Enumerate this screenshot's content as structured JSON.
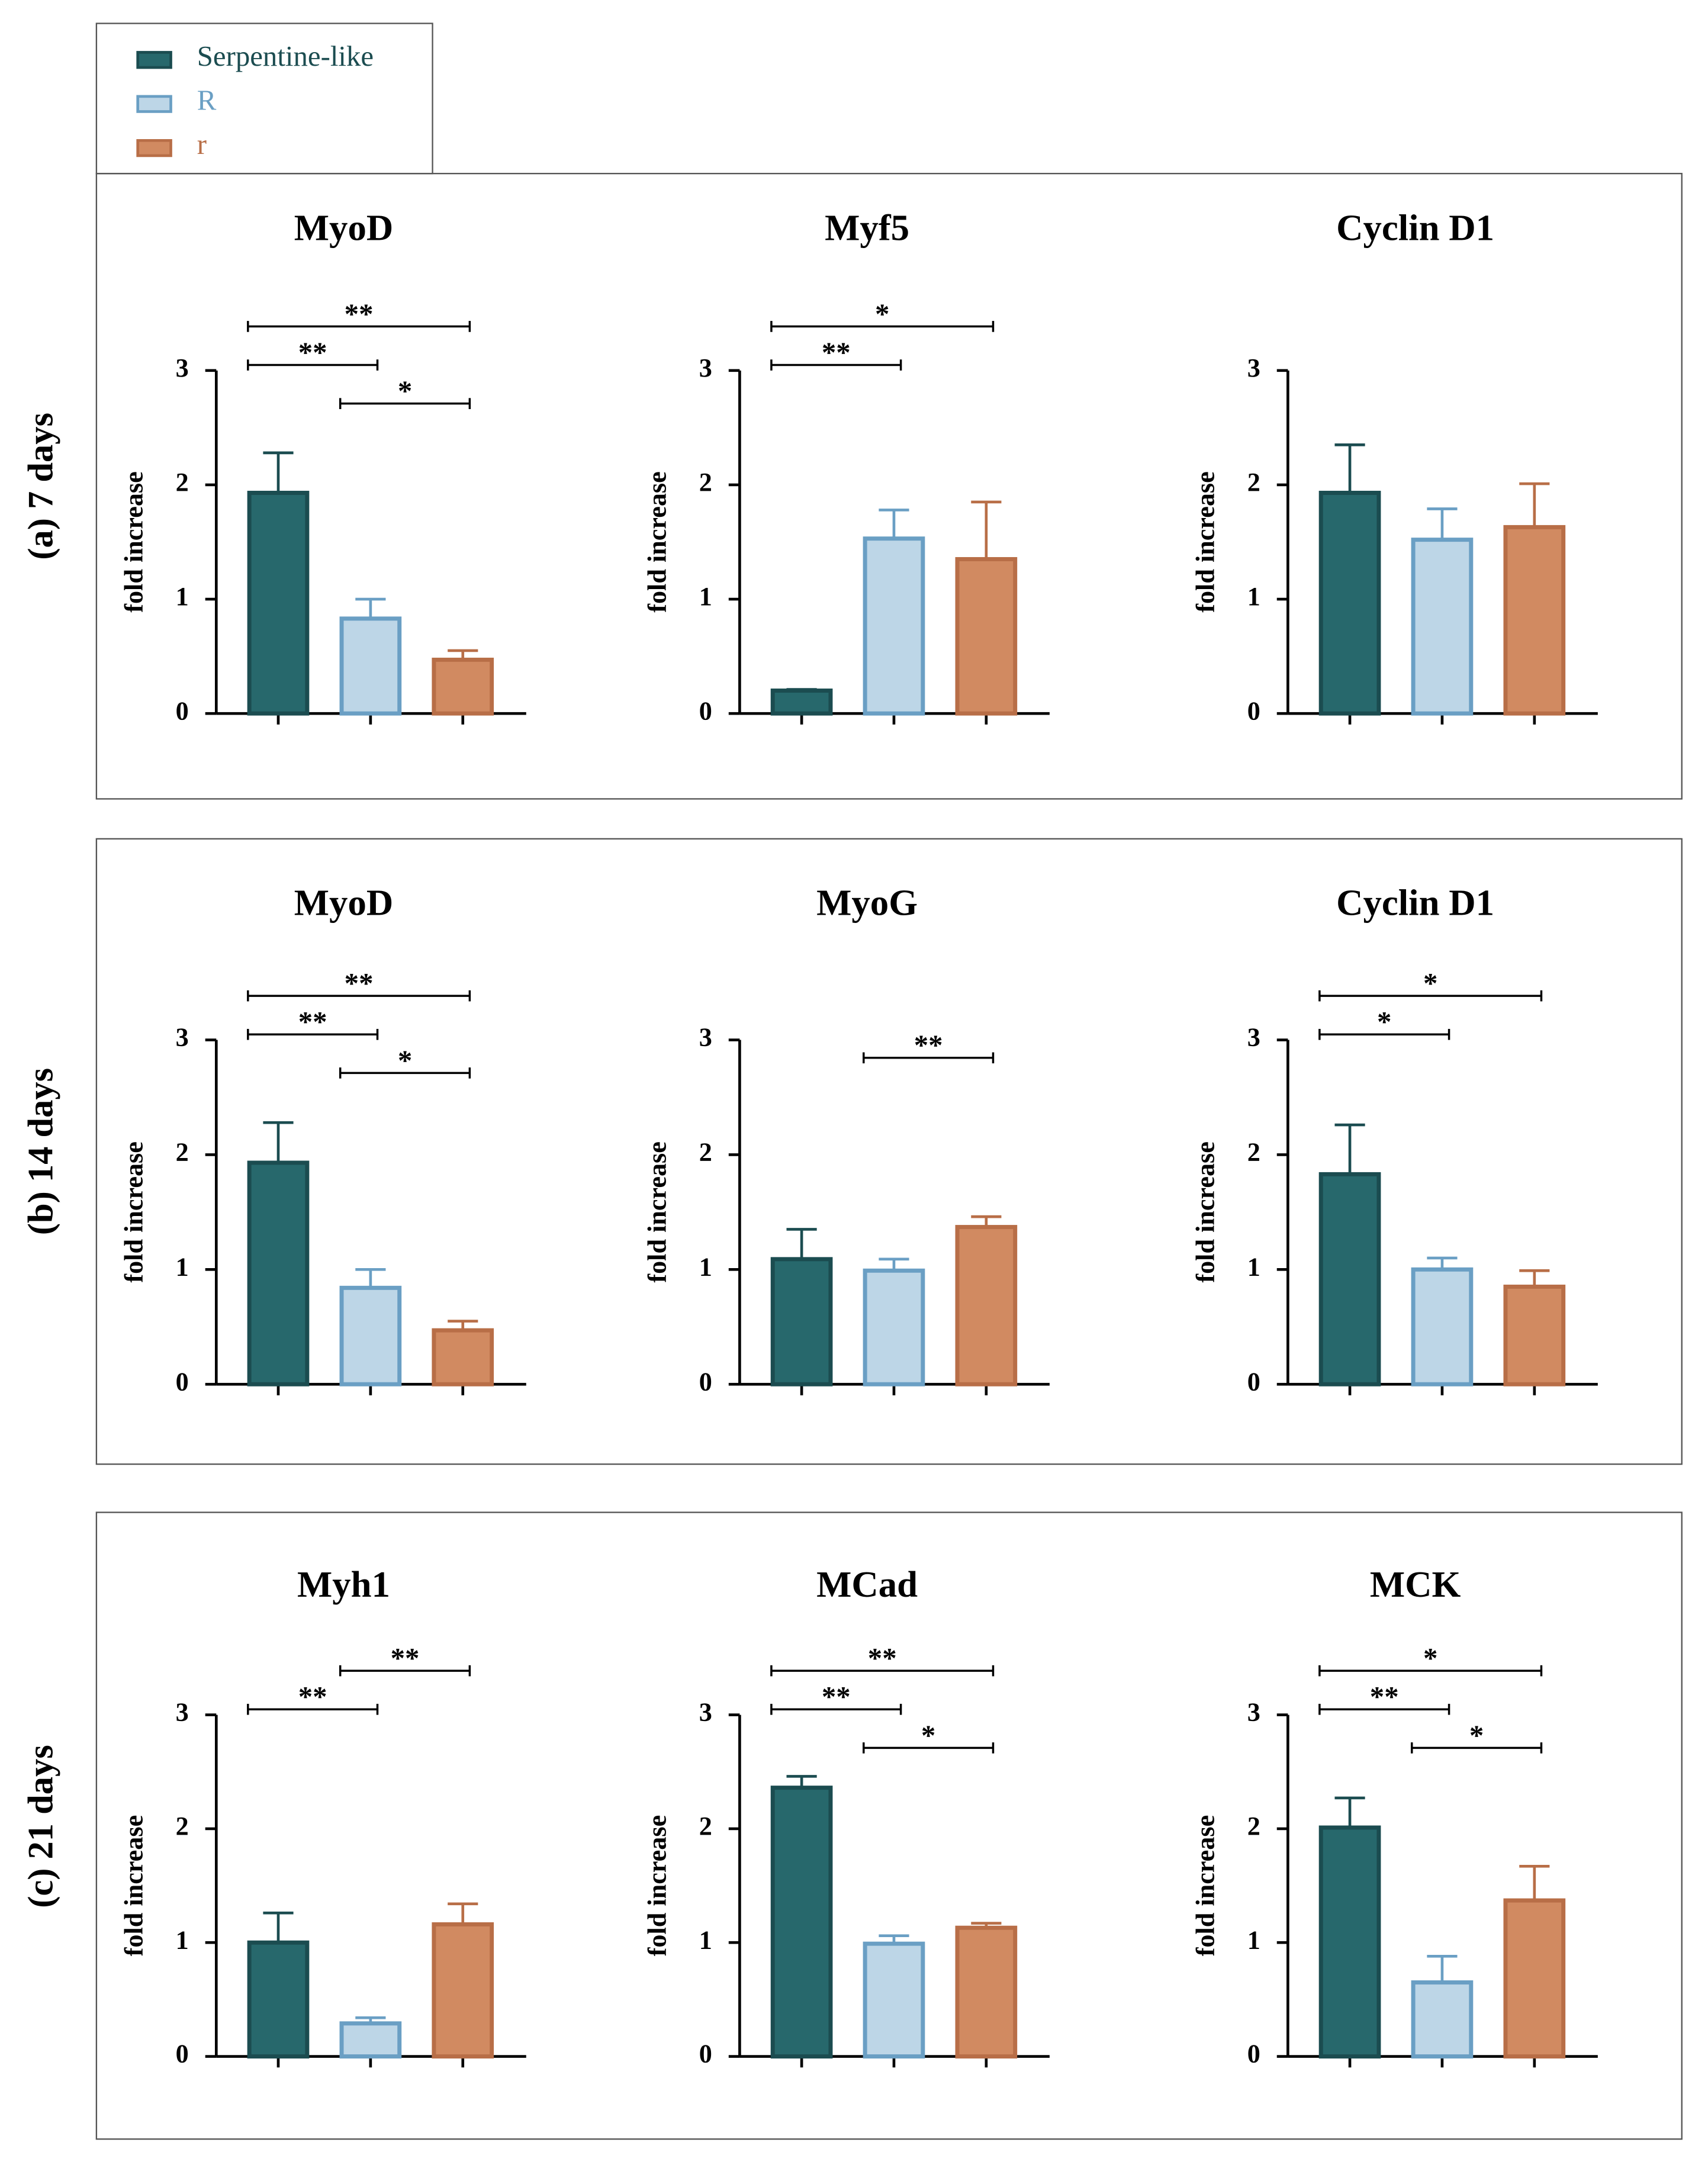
{
  "legend": [
    {
      "name": "Serpentine-like",
      "color": "#27686c",
      "edge": "#1b4c50"
    },
    {
      "name": "R",
      "color": "#bdd6e7",
      "edge": "#6a9fc4"
    },
    {
      "name": "r",
      "color": "#d18a61",
      "edge": "#b86e47"
    }
  ],
  "row_labels": [
    "(a) 7 days",
    "(b) 14 days",
    "(c) 21 days"
  ],
  "chart_data": [
    {
      "type": "bar",
      "title": "MyoD",
      "ylabel": "fold increase",
      "categories": [
        null,
        null,
        null
      ],
      "values": [
        1.93,
        0.83,
        0.47
      ],
      "errors": [
        0.35,
        0.17,
        0.08
      ],
      "ylim": [
        0,
        3
      ],
      "yticks": [
        0,
        1,
        2,
        3
      ],
      "significance": [
        {
          "from": 0,
          "to": 2,
          "label": "**"
        },
        {
          "from": 0,
          "to": 1,
          "label": "**"
        },
        {
          "from": 1,
          "to": 2,
          "label": "*"
        }
      ]
    },
    {
      "type": "bar",
      "title": "Myf5",
      "ylabel": "fold increase",
      "categories": [
        null,
        null,
        null
      ],
      "values": [
        0.2,
        1.53,
        1.35
      ],
      "errors": [
        0.01,
        0.25,
        0.5
      ],
      "ylim": [
        0,
        3
      ],
      "yticks": [
        0,
        1,
        2,
        3
      ],
      "significance": [
        {
          "from": 0,
          "to": 2,
          "label": "*"
        },
        {
          "from": 0,
          "to": 1,
          "label": "**"
        }
      ]
    },
    {
      "type": "bar",
      "title": "Cyclin D1",
      "ylabel": "fold increase",
      "categories": [
        null,
        null,
        null
      ],
      "values": [
        1.93,
        1.52,
        1.63
      ],
      "errors": [
        0.42,
        0.27,
        0.38
      ],
      "ylim": [
        0,
        3
      ],
      "yticks": [
        0,
        1,
        2,
        3
      ],
      "significance": []
    },
    {
      "type": "bar",
      "title": "MyoD",
      "ylabel": "fold increase",
      "categories": [
        null,
        null,
        null
      ],
      "values": [
        1.93,
        0.84,
        0.47
      ],
      "errors": [
        0.35,
        0.16,
        0.08
      ],
      "ylim": [
        0,
        3
      ],
      "yticks": [
        0,
        1,
        2,
        3
      ],
      "significance": [
        {
          "from": 0,
          "to": 2,
          "label": "**"
        },
        {
          "from": 0,
          "to": 1,
          "label": "**"
        },
        {
          "from": 1,
          "to": 2,
          "label": "*"
        }
      ]
    },
    {
      "type": "bar",
      "title": "MyoG",
      "ylabel": "fold increase",
      "categories": [
        null,
        null,
        null
      ],
      "values": [
        1.09,
        0.99,
        1.37
      ],
      "errors": [
        0.26,
        0.1,
        0.09
      ],
      "ylim": [
        0,
        3
      ],
      "yticks": [
        0,
        1,
        2,
        3
      ],
      "significance": [
        {
          "from": 1,
          "to": 2,
          "label": "**"
        }
      ]
    },
    {
      "type": "bar",
      "title": "Cyclin D1",
      "ylabel": "fold increase",
      "categories": [
        null,
        null,
        null
      ],
      "values": [
        1.83,
        1.0,
        0.85
      ],
      "errors": [
        0.43,
        0.1,
        0.14
      ],
      "ylim": [
        0,
        3
      ],
      "yticks": [
        0,
        1,
        2,
        3
      ],
      "significance": [
        {
          "from": 0,
          "to": 2,
          "label": "*"
        },
        {
          "from": 0,
          "to": 1,
          "label": "*"
        }
      ]
    },
    {
      "type": "bar",
      "title": "Myh1",
      "ylabel": "fold increase",
      "categories": [
        null,
        null,
        null
      ],
      "values": [
        1.0,
        0.29,
        1.16
      ],
      "errors": [
        0.26,
        0.05,
        0.18
      ],
      "ylim": [
        0,
        3
      ],
      "yticks": [
        0,
        1,
        2,
        3
      ],
      "significance": [
        {
          "from": 1,
          "to": 2,
          "label": "**"
        },
        {
          "from": 0,
          "to": 1,
          "label": "**"
        }
      ]
    },
    {
      "type": "bar",
      "title": "MCad",
      "ylabel": "fold increase",
      "categories": [
        null,
        null,
        null
      ],
      "values": [
        2.36,
        0.99,
        1.13
      ],
      "errors": [
        0.1,
        0.07,
        0.04
      ],
      "ylim": [
        0,
        3
      ],
      "yticks": [
        0,
        1,
        2,
        3
      ],
      "significance": [
        {
          "from": 0,
          "to": 2,
          "label": "**"
        },
        {
          "from": 0,
          "to": 1,
          "label": "**"
        },
        {
          "from": 1,
          "to": 2,
          "label": "*"
        }
      ]
    },
    {
      "type": "bar",
      "title": "MCK",
      "ylabel": "fold increase",
      "categories": [
        null,
        null,
        null
      ],
      "values": [
        2.01,
        0.65,
        1.37
      ],
      "errors": [
        0.26,
        0.23,
        0.3
      ],
      "ylim": [
        0,
        3
      ],
      "yticks": [
        0,
        1,
        2,
        3
      ],
      "significance": [
        {
          "from": 0,
          "to": 2,
          "label": "*"
        },
        {
          "from": 0,
          "to": 1,
          "label": "**"
        },
        {
          "from": 1,
          "to": 2,
          "label": "*"
        }
      ]
    }
  ]
}
